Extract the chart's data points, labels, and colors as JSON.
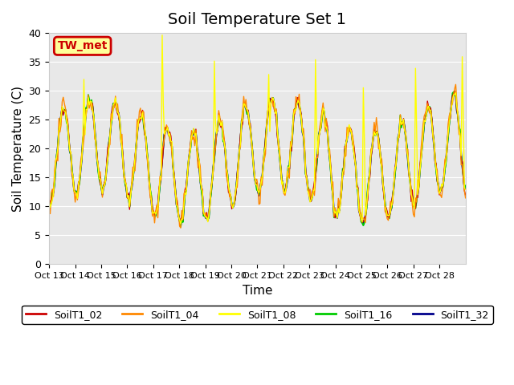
{
  "title": "Soil Temperature Set 1",
  "xlabel": "Time",
  "ylabel": "Soil Temperature (C)",
  "ylim": [
    0,
    40
  ],
  "xlim": [
    0,
    16
  ],
  "background_color": "#e8e8e8",
  "figure_bg": "#ffffff",
  "series_colors": {
    "SoilT1_02": "#cc0000",
    "SoilT1_04": "#ff8800",
    "SoilT1_08": "#ffff00",
    "SoilT1_16": "#00cc00",
    "SoilT1_32": "#00008b"
  },
  "annotation_text": "TW_met",
  "annotation_color": "#cc0000",
  "annotation_bg": "#ffff99",
  "tick_labels": [
    "Oct 13",
    "Oct 14",
    "Oct 15",
    "Oct 16",
    "Oct 17",
    "Oct 18",
    "Oct 19",
    "Oct 20",
    "Oct 21",
    "Oct 22",
    "Oct 23",
    "Oct 24",
    "Oct 25",
    "Oct 26",
    "Oct 27",
    "Oct 28"
  ],
  "yticks": [
    0,
    5,
    10,
    15,
    20,
    25,
    30,
    35,
    40
  ],
  "title_fontsize": 14,
  "label_fontsize": 11
}
